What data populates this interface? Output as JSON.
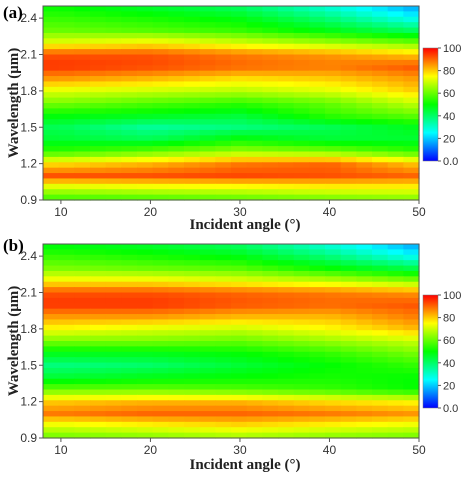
{
  "chart_data": [
    {
      "type": "heatmap",
      "panel_label": "(a)",
      "xlabel": "Incident angle (°)",
      "ylabel": "Wavelength (μm)",
      "x_ticks": [
        "10",
        "20",
        "30",
        "40",
        "50"
      ],
      "y_ticks": [
        "0.9",
        "1.2",
        "1.5",
        "1.8",
        "2.1",
        "2.4"
      ],
      "xlim": [
        8,
        50
      ],
      "ylim": [
        0.9,
        2.5
      ],
      "colorbar": {
        "ticks": [
          "0.0",
          "20",
          "40",
          "60",
          "80",
          "100"
        ],
        "range": [
          0,
          100
        ]
      },
      "colorscale": [
        "#0000ff",
        "#00ffff",
        "#00ff00",
        "#ffff00",
        "#ff0000"
      ],
      "grid": false,
      "x": [
        10,
        20,
        30,
        40,
        50
      ],
      "y": [
        0.9,
        1.0,
        1.1,
        1.2,
        1.3,
        1.4,
        1.5,
        1.6,
        1.7,
        1.8,
        1.9,
        2.0,
        2.1,
        2.2,
        2.3,
        2.4,
        2.5
      ],
      "values": [
        [
          55,
          56,
          58,
          60,
          62
        ],
        [
          70,
          72,
          73,
          75,
          75
        ],
        [
          92,
          92,
          93,
          92,
          90
        ],
        [
          78,
          82,
          88,
          90,
          80
        ],
        [
          55,
          60,
          65,
          62,
          55
        ],
        [
          45,
          42,
          50,
          45,
          45
        ],
        [
          42,
          35,
          38,
          42,
          48
        ],
        [
          50,
          48,
          45,
          55,
          60
        ],
        [
          62,
          58,
          55,
          60,
          70
        ],
        [
          72,
          70,
          68,
          72,
          80
        ],
        [
          85,
          82,
          78,
          80,
          85
        ],
        [
          95,
          93,
          90,
          88,
          92
        ],
        [
          92,
          92,
          88,
          85,
          80
        ],
        [
          72,
          75,
          70,
          65,
          60
        ],
        [
          60,
          58,
          55,
          48,
          40
        ],
        [
          55,
          52,
          48,
          38,
          25
        ],
        [
          50,
          45,
          40,
          28,
          15
        ]
      ]
    },
    {
      "type": "heatmap",
      "panel_label": "(b)",
      "xlabel": "Incident angle (°)",
      "ylabel": "Wavelength (μm)",
      "x_ticks": [
        "10",
        "20",
        "30",
        "40",
        "50"
      ],
      "y_ticks": [
        "0.9",
        "1.2",
        "1.5",
        "1.8",
        "2.1",
        "2.4"
      ],
      "xlim": [
        8,
        50
      ],
      "ylim": [
        0.9,
        2.5
      ],
      "colorbar": {
        "ticks": [
          "0.0",
          "20",
          "40",
          "60",
          "80",
          "100"
        ],
        "range": [
          0,
          100
        ]
      },
      "colorscale": [
        "#0000ff",
        "#00ffff",
        "#00ff00",
        "#ffff00",
        "#ff0000"
      ],
      "grid": false,
      "x": [
        10,
        20,
        30,
        40,
        50
      ],
      "y": [
        0.9,
        1.0,
        1.1,
        1.2,
        1.3,
        1.4,
        1.5,
        1.6,
        1.7,
        1.8,
        1.9,
        2.0,
        2.1,
        2.2,
        2.3,
        2.4,
        2.5
      ],
      "values": [
        [
          60,
          62,
          65,
          62,
          60
        ],
        [
          72,
          75,
          78,
          75,
          72
        ],
        [
          88,
          90,
          90,
          88,
          85
        ],
        [
          80,
          82,
          82,
          78,
          75
        ],
        [
          60,
          60,
          58,
          55,
          50
        ],
        [
          45,
          48,
          50,
          52,
          50
        ],
        [
          38,
          40,
          45,
          50,
          55
        ],
        [
          48,
          48,
          50,
          55,
          62
        ],
        [
          62,
          62,
          60,
          65,
          70
        ],
        [
          75,
          72,
          70,
          75,
          82
        ],
        [
          85,
          85,
          82,
          82,
          88
        ],
        [
          95,
          95,
          92,
          90,
          92
        ],
        [
          92,
          92,
          90,
          88,
          85
        ],
        [
          75,
          75,
          72,
          68,
          62
        ],
        [
          62,
          60,
          58,
          50,
          42
        ],
        [
          55,
          52,
          48,
          38,
          25
        ],
        [
          48,
          45,
          40,
          28,
          15
        ]
      ]
    }
  ]
}
